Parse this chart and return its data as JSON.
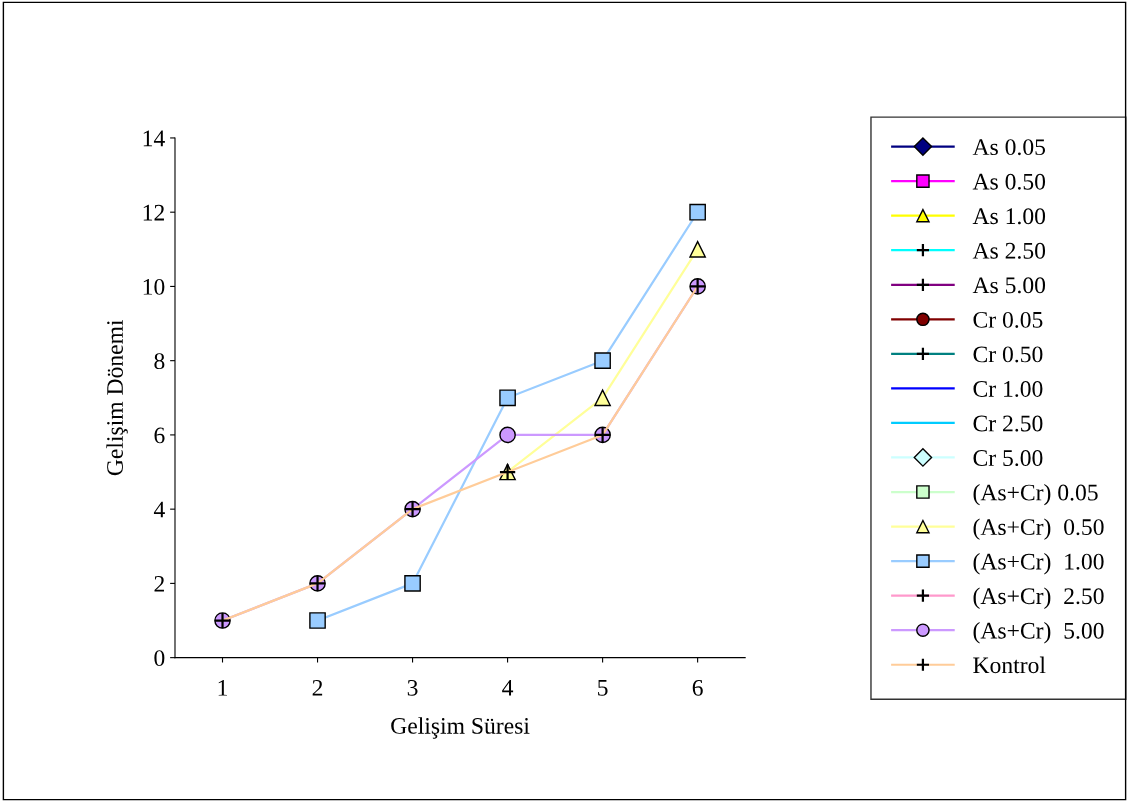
{
  "chart_data": {
    "type": "line",
    "xlabel": "Gelişim Süresi",
    "ylabel": "Gelişim Dönemi",
    "categories": [
      "1",
      "2",
      "3",
      "4",
      "5",
      "6"
    ],
    "ylim": [
      0,
      14
    ],
    "yticks": [
      0,
      2,
      4,
      6,
      8,
      10,
      12,
      14
    ],
    "grid": false,
    "legend": "right",
    "series": [
      {
        "name": "As 0.05",
        "color": "#000080",
        "marker": "diamond",
        "values": [
          null,
          null,
          null,
          null,
          null,
          null
        ]
      },
      {
        "name": "As 0.50",
        "color": "#ff00ff",
        "marker": "square",
        "values": [
          null,
          null,
          null,
          null,
          null,
          null
        ]
      },
      {
        "name": "As 1.00",
        "color": "#ffff00",
        "marker": "triangle",
        "values": [
          null,
          null,
          null,
          null,
          null,
          null
        ]
      },
      {
        "name": "As 2.50",
        "color": "#00ffff",
        "marker": "cross",
        "values": [
          null,
          null,
          null,
          null,
          null,
          null
        ]
      },
      {
        "name": "As 5.00",
        "color": "#800080",
        "marker": "cross",
        "values": [
          null,
          null,
          null,
          null,
          null,
          null
        ]
      },
      {
        "name": "Cr 0.05",
        "color": "#800000",
        "marker": "circle",
        "values": [
          null,
          null,
          null,
          null,
          null,
          null
        ]
      },
      {
        "name": "Cr 0.50",
        "color": "#008080",
        "marker": "cross",
        "values": [
          null,
          null,
          null,
          null,
          null,
          null
        ]
      },
      {
        "name": "Cr 1.00",
        "color": "#0000ff",
        "marker": "none",
        "values": [
          null,
          null,
          null,
          null,
          null,
          null
        ]
      },
      {
        "name": "Cr 2.50",
        "color": "#00ccff",
        "marker": "none",
        "values": [
          null,
          null,
          null,
          null,
          null,
          null
        ]
      },
      {
        "name": "Cr 5.00",
        "color": "#ccffff",
        "marker": "diamond",
        "values": [
          null,
          null,
          null,
          null,
          null,
          null
        ]
      },
      {
        "name": "(As+Cr) 0.05",
        "color": "#ccffcc",
        "marker": "square",
        "values": [
          null,
          null,
          null,
          null,
          null,
          null
        ]
      },
      {
        "name": "(As+Cr)  0.50",
        "color": "#ffff99",
        "marker": "triangle",
        "values": [
          null,
          null,
          null,
          5,
          7,
          11
        ]
      },
      {
        "name": "(As+Cr)  1.00",
        "color": "#99ccff",
        "marker": "square",
        "values": [
          null,
          1,
          2,
          7,
          8,
          12
        ]
      },
      {
        "name": "(As+Cr)  2.50",
        "color": "#ff99cc",
        "marker": "cross",
        "values": [
          null,
          null,
          null,
          null,
          null,
          null
        ]
      },
      {
        "name": "(As+Cr)  5.00",
        "color": "#cc99ff",
        "marker": "circle",
        "values": [
          1,
          2,
          4,
          6,
          6,
          10
        ]
      },
      {
        "name": "Kontrol",
        "color": "#ffcc99",
        "marker": "cross",
        "values": [
          1,
          2,
          4,
          5,
          6,
          10
        ]
      }
    ]
  }
}
